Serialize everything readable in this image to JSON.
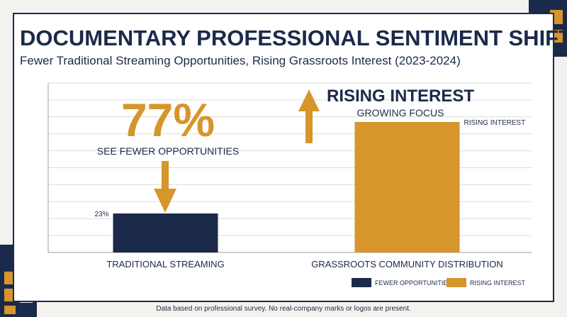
{
  "header": {
    "title": "DOCUMENTARY PROFESSIONAL SENTIMENT SHIFT",
    "subtitle": "Fewer Traditional Streaming Opportunities, Rising Grassroots Interest (2023-2024)"
  },
  "footer": {
    "note": "Data based on professional survey. No real-company marks or logos are present."
  },
  "colors": {
    "navy": "#1b2a4a",
    "gold": "#d6962b",
    "grid": "#dcdcdc"
  },
  "callouts": {
    "big_stat": "77%",
    "big_stat_caption": "SEE FEWER OPPORTUNITIES",
    "rising_title": "RISING INTEREST",
    "rising_caption": "GROWING FOCUS",
    "arrow_down_icon": "down-arrow-icon",
    "arrow_up_icon": "up-arrow-icon"
  },
  "chart_data": {
    "type": "bar",
    "categories": [
      "TRADITIONAL STREAMING",
      "GRASSROOTS COMMUNITY DISTRIBUTION"
    ],
    "values": [
      23,
      77
    ],
    "data_labels": [
      "23%",
      "RISING INTEREST"
    ],
    "bar_colors": [
      "#1b2a4a",
      "#d6962b"
    ],
    "ylim": [
      0,
      100
    ],
    "grid": true,
    "legend": {
      "position": "bottom-right",
      "entries": [
        {
          "label": "FEWER OPPORTUNITIES",
          "color": "#1b2a4a"
        },
        {
          "label": "RISING INTEREST",
          "color": "#d6962b"
        }
      ]
    }
  }
}
